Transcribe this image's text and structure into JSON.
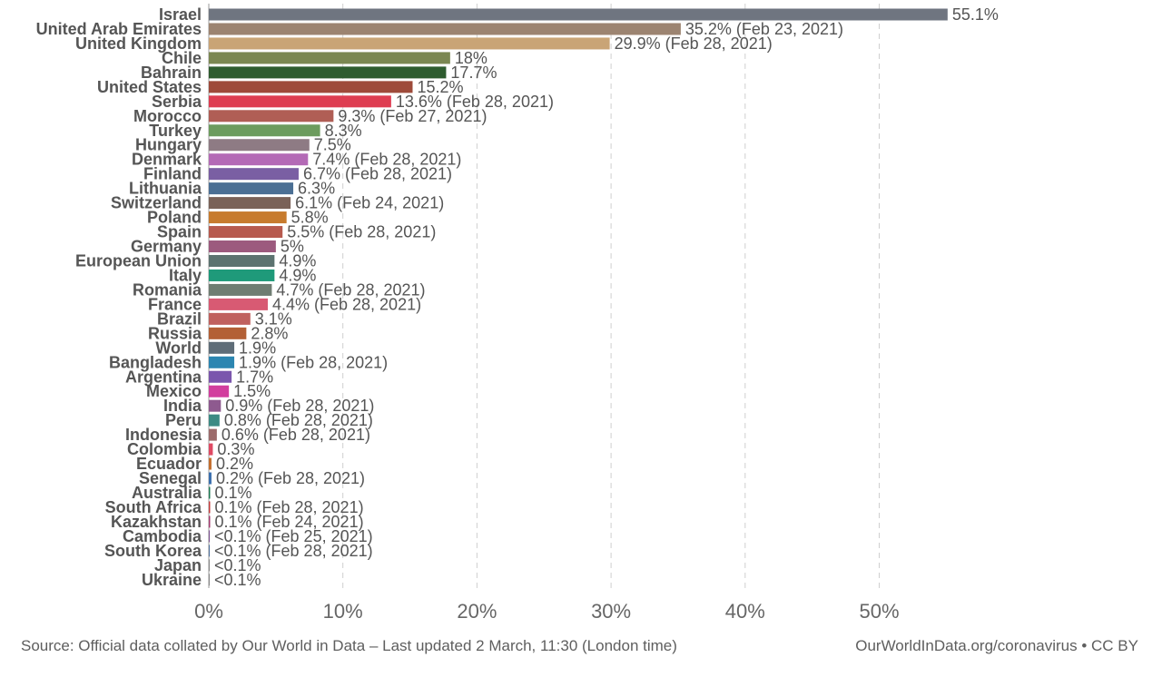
{
  "chart_data": {
    "type": "bar",
    "orientation": "horizontal",
    "unit": "%",
    "xlim": [
      0,
      55.1
    ],
    "grid": true,
    "xticks": [
      {
        "value": 0,
        "label": "0%"
      },
      {
        "value": 10,
        "label": "10%"
      },
      {
        "value": 20,
        "label": "20%"
      },
      {
        "value": 30,
        "label": "30%"
      },
      {
        "value": 40,
        "label": "40%"
      },
      {
        "value": 50,
        "label": "50%"
      }
    ],
    "bars": [
      {
        "category": "Israel",
        "value": 55.1,
        "label": "55.1%",
        "color": "#6f7580"
      },
      {
        "category": "United Arab Emirates",
        "value": 35.2,
        "label": "35.2% (Feb 23, 2021)",
        "color": "#9c8471"
      },
      {
        "category": "United Kingdom",
        "value": 29.9,
        "label": "29.9% (Feb 28, 2021)",
        "color": "#c9a476"
      },
      {
        "category": "Chile",
        "value": 18,
        "label": "18%",
        "color": "#7b8752"
      },
      {
        "category": "Bahrain",
        "value": 17.7,
        "label": "17.7%",
        "color": "#2e5c2f"
      },
      {
        "category": "United States",
        "value": 15.2,
        "label": "15.2%",
        "color": "#9e4a3a"
      },
      {
        "category": "Serbia",
        "value": 13.6,
        "label": "13.6% (Feb 28, 2021)",
        "color": "#de3d51"
      },
      {
        "category": "Morocco",
        "value": 9.3,
        "label": "9.3% (Feb 27, 2021)",
        "color": "#b05e55"
      },
      {
        "category": "Turkey",
        "value": 8.3,
        "label": "8.3%",
        "color": "#6c9c5e"
      },
      {
        "category": "Hungary",
        "value": 7.5,
        "label": "7.5%",
        "color": "#8e7b84"
      },
      {
        "category": "Denmark",
        "value": 7.4,
        "label": "7.4% (Feb 28, 2021)",
        "color": "#b46ab6"
      },
      {
        "category": "Finland",
        "value": 6.7,
        "label": "6.7% (Feb 28, 2021)",
        "color": "#7a5fa3"
      },
      {
        "category": "Lithuania",
        "value": 6.3,
        "label": "6.3%",
        "color": "#4b6f94"
      },
      {
        "category": "Switzerland",
        "value": 6.1,
        "label": "6.1% (Feb 24, 2021)",
        "color": "#7a6258"
      },
      {
        "category": "Poland",
        "value": 5.8,
        "label": "5.8%",
        "color": "#c77b2e"
      },
      {
        "category": "Spain",
        "value": 5.5,
        "label": "5.5% (Feb 28, 2021)",
        "color": "#b75a4e"
      },
      {
        "category": "Germany",
        "value": 5,
        "label": "5%",
        "color": "#9c5a7e"
      },
      {
        "category": "European Union",
        "value": 4.9,
        "label": "4.9%",
        "color": "#5c7370"
      },
      {
        "category": "Italy",
        "value": 4.9,
        "label": "4.9%",
        "color": "#1f9a7a"
      },
      {
        "category": "Romania",
        "value": 4.7,
        "label": "4.7% (Feb 28, 2021)",
        "color": "#6f7d72"
      },
      {
        "category": "France",
        "value": 4.4,
        "label": "4.4% (Feb 28, 2021)",
        "color": "#d85a73"
      },
      {
        "category": "Brazil",
        "value": 3.1,
        "label": "3.1%",
        "color": "#c0615e"
      },
      {
        "category": "Russia",
        "value": 2.8,
        "label": "2.8%",
        "color": "#b36036"
      },
      {
        "category": "World",
        "value": 1.9,
        "label": "1.9%",
        "color": "#5f6d78"
      },
      {
        "category": "Bangladesh",
        "value": 1.9,
        "label": "1.9% (Feb 28, 2021)",
        "color": "#2c86b1"
      },
      {
        "category": "Argentina",
        "value": 1.7,
        "label": "1.7%",
        "color": "#7b56ad"
      },
      {
        "category": "Mexico",
        "value": 1.5,
        "label": "1.5%",
        "color": "#d23e9e"
      },
      {
        "category": "India",
        "value": 0.9,
        "label": "0.9% (Feb 28, 2021)",
        "color": "#8e5a8f"
      },
      {
        "category": "Peru",
        "value": 0.8,
        "label": "0.8% (Feb 28, 2021)",
        "color": "#3c8a84"
      },
      {
        "category": "Indonesia",
        "value": 0.6,
        "label": "0.6% (Feb 28, 2021)",
        "color": "#9c6b6b"
      },
      {
        "category": "Colombia",
        "value": 0.3,
        "label": "0.3%",
        "color": "#df4a63"
      },
      {
        "category": "Ecuador",
        "value": 0.2,
        "label": "0.2%",
        "color": "#c46e2e"
      },
      {
        "category": "Senegal",
        "value": 0.2,
        "label": "0.2% (Feb 28, 2021)",
        "color": "#3a6fae"
      },
      {
        "category": "Australia",
        "value": 0.1,
        "label": "0.1%",
        "color": "#1d7a52"
      },
      {
        "category": "South Africa",
        "value": 0.1,
        "label": "0.1% (Feb 28, 2021)",
        "color": "#c43a3a"
      },
      {
        "category": "Kazakhstan",
        "value": 0.1,
        "label": "0.1% (Feb 24, 2021)",
        "color": "#a33a6e"
      },
      {
        "category": "Cambodia",
        "value": 0.05,
        "label": "<0.1% (Feb 25, 2021)",
        "color": "#7a4f8e"
      },
      {
        "category": "South Korea",
        "value": 0.05,
        "label": "<0.1% (Feb 28, 2021)",
        "color": "#4d6f9a"
      },
      {
        "category": "Japan",
        "value": 0.02,
        "label": "<0.1%",
        "color": "#888888"
      },
      {
        "category": "Ukraine",
        "value": 0.02,
        "label": "<0.1%",
        "color": "#888888"
      }
    ]
  },
  "footer": {
    "source": "Source: Official data collated by Our World in Data – Last updated 2 March, 11:30 (London time)",
    "credit": "OurWorldInData.org/coronavirus • CC BY"
  }
}
